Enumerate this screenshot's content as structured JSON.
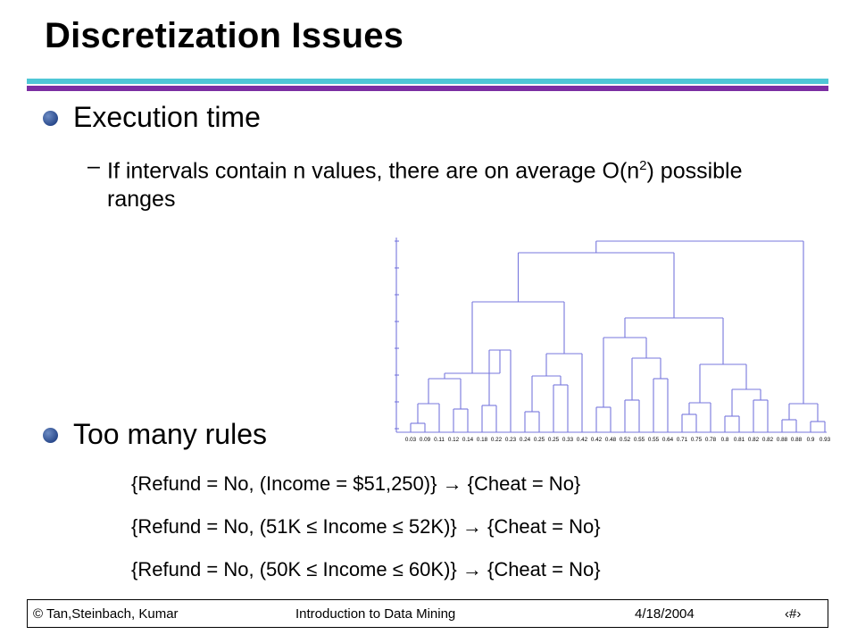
{
  "slide": {
    "title": "Discretization Issues",
    "bullet1": "Execution time",
    "sub1_part1": "If intervals contain n values, there are on average O(n",
    "sub1_sup": "2",
    "sub1_part2": ") possible ranges",
    "bullet2": "Too many rules",
    "rules": [
      "{Refund = No, (Income = $51,250)} → {Cheat = No}",
      "{Refund = No, (51K ≤ Income ≤ 52K)} → {Cheat = No}",
      "{Refund = No, (50K ≤ Income ≤ 60K)} → {Cheat = No}"
    ]
  },
  "dendrogram": {
    "line_color": "#7777dd",
    "leaf_labels": [
      "0.03",
      "0.09",
      "0.11",
      "0.12",
      "0.14",
      "0.18",
      "0.22",
      "0.23",
      "0.24",
      "0.25",
      "0.25",
      "0.33",
      "0.42",
      "0.42",
      "0.48",
      "0.52",
      "0.55",
      "0.55",
      "0.64",
      "0.71",
      "0.75",
      "0.78",
      "0.8",
      "0.81",
      "0.82",
      "0.82",
      "0.88",
      "0.88",
      "0.9",
      "0.93"
    ]
  },
  "footer": {
    "left": "© Tan,Steinbach, Kumar",
    "center": "Introduction to Data Mining",
    "date": "4/18/2004",
    "page": "‹#›"
  }
}
